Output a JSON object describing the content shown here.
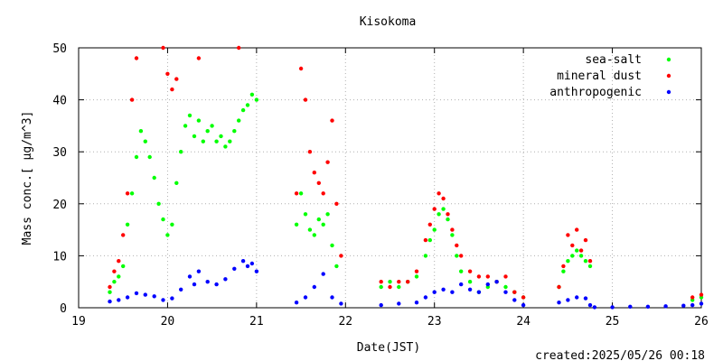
{
  "chart_data": {
    "type": "scatter",
    "title": "Kisokoma",
    "xlabel": "Date(JST)",
    "ylabel": "Mass conc.[ μg/m^3]",
    "created": "created:2025/05/26 00:18",
    "xlim": [
      19,
      26
    ],
    "ylim": [
      0,
      50
    ],
    "x_ticks": [
      "19",
      "20",
      "21",
      "22",
      "23",
      "24",
      "25",
      "26"
    ],
    "y_ticks": [
      "0",
      "10",
      "20",
      "30",
      "40",
      "50"
    ],
    "grid": true,
    "legend_position": "top-right",
    "series": [
      {
        "name": "sea-salt",
        "color": "#00ff00",
        "points": [
          [
            19.35,
            3
          ],
          [
            19.4,
            5
          ],
          [
            19.45,
            6
          ],
          [
            19.5,
            8
          ],
          [
            19.55,
            16
          ],
          [
            19.6,
            22
          ],
          [
            19.65,
            29
          ],
          [
            19.7,
            34
          ],
          [
            19.75,
            32
          ],
          [
            19.8,
            29
          ],
          [
            19.85,
            25
          ],
          [
            19.9,
            20
          ],
          [
            19.95,
            17
          ],
          [
            20.0,
            14
          ],
          [
            20.05,
            16
          ],
          [
            20.1,
            24
          ],
          [
            20.15,
            30
          ],
          [
            20.2,
            35
          ],
          [
            20.25,
            37
          ],
          [
            20.3,
            33
          ],
          [
            20.35,
            36
          ],
          [
            20.4,
            32
          ],
          [
            20.45,
            34
          ],
          [
            20.5,
            35
          ],
          [
            20.55,
            32
          ],
          [
            20.6,
            33
          ],
          [
            20.65,
            31
          ],
          [
            20.7,
            32
          ],
          [
            20.75,
            34
          ],
          [
            20.8,
            36
          ],
          [
            20.85,
            38
          ],
          [
            20.9,
            39
          ],
          [
            20.95,
            41
          ],
          [
            21.0,
            40
          ],
          [
            21.45,
            16
          ],
          [
            21.5,
            22
          ],
          [
            21.55,
            18
          ],
          [
            21.6,
            15
          ],
          [
            21.65,
            14
          ],
          [
            21.7,
            17
          ],
          [
            21.75,
            16
          ],
          [
            21.8,
            18
          ],
          [
            21.85,
            12
          ],
          [
            21.9,
            8
          ],
          [
            22.4,
            4
          ],
          [
            22.5,
            5
          ],
          [
            22.6,
            4
          ],
          [
            22.7,
            5
          ],
          [
            22.8,
            6
          ],
          [
            22.9,
            10
          ],
          [
            22.95,
            13
          ],
          [
            23.0,
            15
          ],
          [
            23.05,
            18
          ],
          [
            23.1,
            19
          ],
          [
            23.15,
            17
          ],
          [
            23.2,
            14
          ],
          [
            23.25,
            10
          ],
          [
            23.3,
            7
          ],
          [
            23.4,
            5
          ],
          [
            23.5,
            3
          ],
          [
            23.6,
            4
          ],
          [
            23.7,
            5
          ],
          [
            23.8,
            4
          ],
          [
            23.9,
            3
          ],
          [
            24.0,
            2
          ],
          [
            24.4,
            4
          ],
          [
            24.45,
            7
          ],
          [
            24.5,
            9
          ],
          [
            24.55,
            10
          ],
          [
            24.6,
            11
          ],
          [
            24.65,
            10
          ],
          [
            24.7,
            9
          ],
          [
            24.75,
            8
          ],
          [
            25.9,
            1.5
          ],
          [
            26.0,
            2
          ]
        ]
      },
      {
        "name": "mineral dust",
        "color": "#ff0000",
        "points": [
          [
            19.35,
            4
          ],
          [
            19.4,
            7
          ],
          [
            19.45,
            9
          ],
          [
            19.5,
            14
          ],
          [
            19.55,
            22
          ],
          [
            19.6,
            40
          ],
          [
            19.65,
            48
          ],
          [
            19.95,
            50
          ],
          [
            20.0,
            45
          ],
          [
            20.05,
            42
          ],
          [
            20.1,
            44
          ],
          [
            20.35,
            48
          ],
          [
            20.8,
            50
          ],
          [
            21.45,
            22
          ],
          [
            21.5,
            46
          ],
          [
            21.55,
            40
          ],
          [
            21.6,
            30
          ],
          [
            21.65,
            26
          ],
          [
            21.7,
            24
          ],
          [
            21.75,
            22
          ],
          [
            21.8,
            28
          ],
          [
            21.85,
            36
          ],
          [
            21.9,
            20
          ],
          [
            21.95,
            10
          ],
          [
            22.4,
            5
          ],
          [
            22.5,
            4
          ],
          [
            22.6,
            5
          ],
          [
            22.7,
            5
          ],
          [
            22.8,
            7
          ],
          [
            22.9,
            13
          ],
          [
            22.95,
            16
          ],
          [
            23.0,
            19
          ],
          [
            23.05,
            22
          ],
          [
            23.1,
            21
          ],
          [
            23.15,
            18
          ],
          [
            23.2,
            15
          ],
          [
            23.25,
            12
          ],
          [
            23.3,
            10
          ],
          [
            23.4,
            7
          ],
          [
            23.5,
            6
          ],
          [
            23.6,
            6
          ],
          [
            23.7,
            5
          ],
          [
            23.8,
            6
          ],
          [
            23.9,
            3
          ],
          [
            24.0,
            2
          ],
          [
            24.4,
            4
          ],
          [
            24.45,
            8
          ],
          [
            24.5,
            14
          ],
          [
            24.55,
            12
          ],
          [
            24.6,
            15
          ],
          [
            24.65,
            11
          ],
          [
            24.7,
            13
          ],
          [
            24.75,
            9
          ],
          [
            25.9,
            2
          ],
          [
            26.0,
            2.5
          ]
        ]
      },
      {
        "name": "anthropogenic",
        "color": "#0000ff",
        "points": [
          [
            19.35,
            1.2
          ],
          [
            19.45,
            1.5
          ],
          [
            19.55,
            2
          ],
          [
            19.65,
            2.8
          ],
          [
            19.75,
            2.5
          ],
          [
            19.85,
            2.2
          ],
          [
            19.95,
            1.5
          ],
          [
            20.05,
            1.8
          ],
          [
            20.15,
            3.5
          ],
          [
            20.25,
            6
          ],
          [
            20.3,
            4.5
          ],
          [
            20.35,
            7
          ],
          [
            20.45,
            5
          ],
          [
            20.55,
            4.5
          ],
          [
            20.65,
            5.5
          ],
          [
            20.75,
            7.5
          ],
          [
            20.85,
            9
          ],
          [
            20.9,
            8
          ],
          [
            20.95,
            8.5
          ],
          [
            21.0,
            7
          ],
          [
            21.45,
            1
          ],
          [
            21.55,
            2
          ],
          [
            21.65,
            4
          ],
          [
            21.75,
            6.5
          ],
          [
            21.85,
            2
          ],
          [
            21.95,
            0.8
          ],
          [
            22.4,
            0.5
          ],
          [
            22.6,
            0.8
          ],
          [
            22.8,
            1
          ],
          [
            22.9,
            2
          ],
          [
            23.0,
            3
          ],
          [
            23.1,
            3.5
          ],
          [
            23.2,
            3
          ],
          [
            23.3,
            4.5
          ],
          [
            23.4,
            3.5
          ],
          [
            23.5,
            3
          ],
          [
            23.6,
            4.5
          ],
          [
            23.7,
            5
          ],
          [
            23.8,
            3
          ],
          [
            23.9,
            1.5
          ],
          [
            24.0,
            0.5
          ],
          [
            24.4,
            1
          ],
          [
            24.5,
            1.5
          ],
          [
            24.6,
            2
          ],
          [
            24.7,
            1.8
          ],
          [
            24.75,
            0.5
          ],
          [
            24.8,
            0.1
          ],
          [
            25.0,
            0.1
          ],
          [
            25.2,
            0.2
          ],
          [
            25.4,
            0.2
          ],
          [
            25.6,
            0.3
          ],
          [
            25.8,
            0.4
          ],
          [
            25.9,
            0.5
          ],
          [
            26.0,
            0.8
          ]
        ]
      }
    ]
  }
}
